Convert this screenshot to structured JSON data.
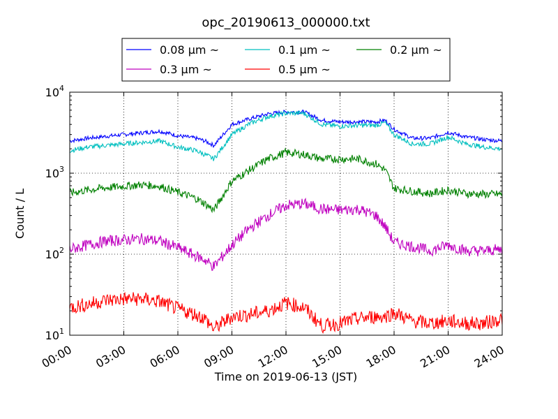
{
  "chart_data": {
    "type": "line",
    "title": "opc_20190613_000000.txt",
    "xlabel": "Time on 2019-06-13 (JST)",
    "ylabel": "Count / L",
    "yscale": "log",
    "ylim": [
      10,
      10000
    ],
    "xlim": [
      "00:00",
      "24:00"
    ],
    "x_ticks": [
      "00:00",
      "03:00",
      "06:00",
      "09:00",
      "12:00",
      "15:00",
      "18:00",
      "21:00",
      "24:00"
    ],
    "y_ticks": [
      {
        "base": "10",
        "exp": "1"
      },
      {
        "base": "10",
        "exp": "2"
      },
      {
        "base": "10",
        "exp": "3"
      },
      {
        "base": "10",
        "exp": "4"
      }
    ],
    "grid": true,
    "legend_position": "top-center (above plot)",
    "x": [
      "00:00",
      "01:00",
      "02:00",
      "03:00",
      "04:00",
      "05:00",
      "06:00",
      "07:00",
      "07:30",
      "08:00",
      "09:00",
      "10:00",
      "11:00",
      "12:00",
      "13:00",
      "14:00",
      "15:00",
      "16:00",
      "17:00",
      "17:30",
      "18:00",
      "19:00",
      "20:00",
      "21:00",
      "22:00",
      "23:00",
      "24:00"
    ],
    "series": [
      {
        "name": "0.08 µm ~",
        "color": "#0000ff",
        "values": [
          2500,
          2700,
          2850,
          3000,
          3150,
          3300,
          2900,
          2700,
          2500,
          2200,
          4000,
          4700,
          5400,
          5700,
          5700,
          4500,
          4300,
          4300,
          4300,
          4500,
          3500,
          2700,
          2700,
          3200,
          2800,
          2600,
          2500
        ]
      },
      {
        "name": "0.1 µm ~",
        "color": "#00bfbf",
        "values": [
          1900,
          2100,
          2200,
          2300,
          2400,
          2500,
          2100,
          1900,
          1700,
          1500,
          3000,
          4100,
          5000,
          5500,
          5500,
          4000,
          3800,
          3900,
          3900,
          4200,
          3000,
          2300,
          2300,
          2800,
          2300,
          2100,
          2000
        ]
      },
      {
        "name": "0.2 µm ~",
        "color": "#008000",
        "values": [
          570,
          620,
          660,
          690,
          720,
          690,
          580,
          490,
          420,
          350,
          800,
          1100,
          1500,
          1800,
          1700,
          1500,
          1500,
          1500,
          1300,
          1100,
          650,
          600,
          560,
          620,
          560,
          550,
          550
        ]
      },
      {
        "name": "0.3 µm ~",
        "color": "#bf00bf",
        "values": [
          115,
          130,
          145,
          150,
          155,
          145,
          120,
          95,
          85,
          70,
          130,
          210,
          300,
          400,
          420,
          360,
          350,
          360,
          300,
          220,
          140,
          125,
          110,
          130,
          110,
          110,
          115
        ]
      },
      {
        "name": "0.5 µm ~",
        "color": "#ff0000",
        "values": [
          22,
          24,
          27,
          28,
          28,
          26,
          21,
          18,
          16,
          12,
          17,
          18,
          20,
          25,
          22,
          13,
          14,
          16,
          17,
          17,
          19,
          15,
          14,
          15,
          14,
          14,
          16
        ]
      }
    ]
  }
}
